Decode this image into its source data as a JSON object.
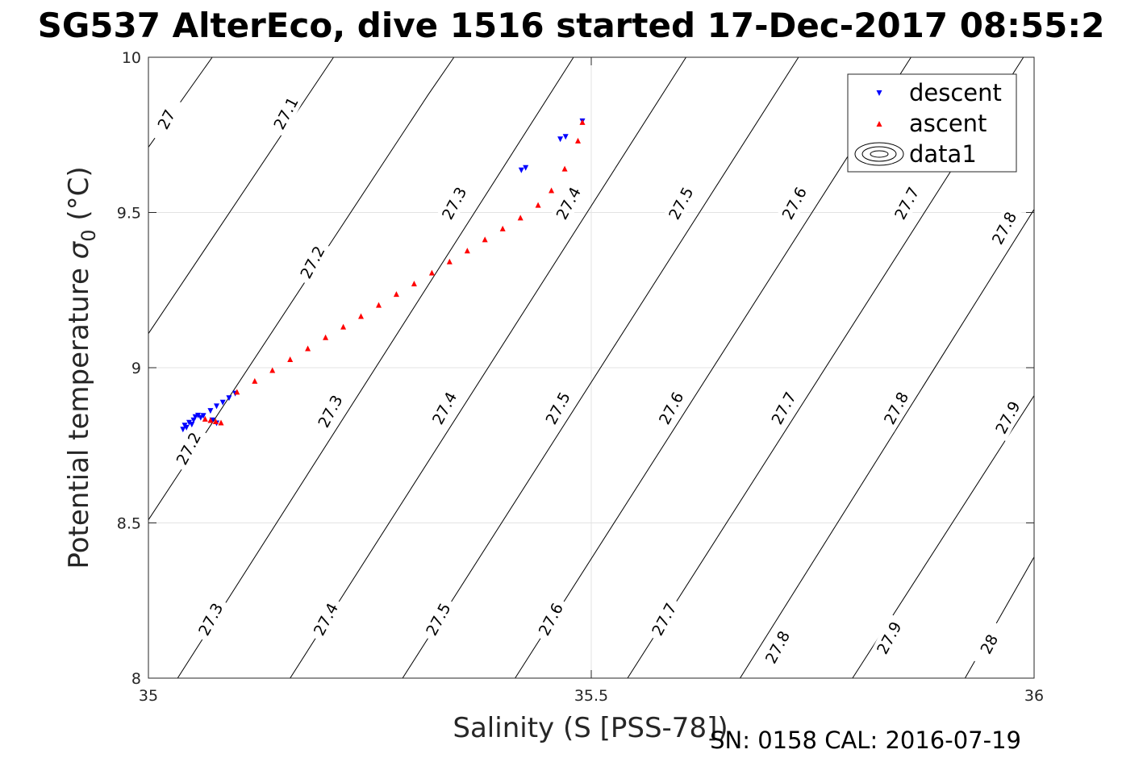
{
  "chart_data": {
    "type": "scatter",
    "title": "SG537 AlterEco, dive 1516 started 17-Dec-2017 08:55:2",
    "xlabel": "Salinity (S [PSS-78])",
    "ylabel_main": "Potential temperature ",
    "ylabel_sym": "σ",
    "ylabel_sub": "0",
    "ylabel_unit": " (°C)",
    "xlim": [
      35,
      36
    ],
    "ylim": [
      8,
      10
    ],
    "xticks": [
      "35",
      "35.5",
      "36"
    ],
    "yticks": [
      "8",
      "8.5",
      "9",
      "9.5",
      "10"
    ],
    "grid": true,
    "legend_position": "top-right",
    "legend": [
      {
        "name": "descent",
        "color": "#0000ff",
        "marker": "triangle-down"
      },
      {
        "name": "ascent",
        "color": "#ff0000",
        "marker": "triangle-up"
      },
      {
        "name": "data1",
        "color": "#000000",
        "marker": "contour"
      }
    ],
    "series": [
      {
        "name": "descent",
        "color": "#0000ff",
        "marker": "triangle-down",
        "points": [
          [
            35.039,
            8.802
          ],
          [
            35.041,
            8.815
          ],
          [
            35.043,
            8.808
          ],
          [
            35.046,
            8.824
          ],
          [
            35.049,
            8.818
          ],
          [
            35.051,
            8.832
          ],
          [
            35.053,
            8.842
          ],
          [
            35.056,
            8.847
          ],
          [
            35.059,
            8.84
          ],
          [
            35.062,
            8.846
          ],
          [
            35.07,
            8.862
          ],
          [
            35.077,
            8.877
          ],
          [
            35.084,
            8.889
          ],
          [
            35.091,
            8.903
          ],
          [
            35.098,
            8.918
          ],
          [
            35.072,
            8.832
          ],
          [
            35.077,
            8.822
          ],
          [
            35.421,
            9.637
          ],
          [
            35.426,
            9.645
          ],
          [
            35.465,
            9.737
          ],
          [
            35.471,
            9.745
          ],
          [
            35.49,
            9.795
          ]
        ]
      },
      {
        "name": "ascent",
        "color": "#ff0000",
        "marker": "triangle-up",
        "points": [
          [
            35.064,
            8.834
          ],
          [
            35.07,
            8.83
          ],
          [
            35.076,
            8.826
          ],
          [
            35.082,
            8.822
          ],
          [
            35.1,
            8.921
          ],
          [
            35.12,
            8.956
          ],
          [
            35.14,
            8.991
          ],
          [
            35.16,
            9.026
          ],
          [
            35.18,
            9.061
          ],
          [
            35.2,
            9.097
          ],
          [
            35.22,
            9.131
          ],
          [
            35.24,
            9.165
          ],
          [
            35.26,
            9.201
          ],
          [
            35.28,
            9.236
          ],
          [
            35.3,
            9.27
          ],
          [
            35.32,
            9.305
          ],
          [
            35.34,
            9.341
          ],
          [
            35.36,
            9.376
          ],
          [
            35.38,
            9.412
          ],
          [
            35.4,
            9.447
          ],
          [
            35.42,
            9.482
          ],
          [
            35.44,
            9.523
          ],
          [
            35.455,
            9.57
          ],
          [
            35.47,
            9.64
          ],
          [
            35.485,
            9.73
          ],
          [
            35.49,
            9.79
          ]
        ]
      }
    ],
    "contours": [
      {
        "level": "27",
        "segments": [
          [
            [
              35.0,
              9.71
            ],
            [
              35.072,
              10.0
            ]
          ]
        ]
      },
      {
        "level": "27.1",
        "segments": [
          [
            [
              35.0,
              9.11
            ],
            [
              35.209,
              10.0
            ]
          ]
        ]
      },
      {
        "level": "27.2",
        "segments": [
          [
            [
              35.0,
              8.51
            ],
            [
              35.316,
              9.88
            ],
            [
              35.345,
              10.0
            ]
          ]
        ]
      },
      {
        "level": "27.3",
        "segments": [
          [
            [
              35.033,
              8.0
            ],
            [
              35.48,
              10.0
            ]
          ]
        ]
      },
      {
        "level": "27.4",
        "segments": [
          [
            [
              35.16,
              8.0
            ],
            [
              35.607,
              10.0
            ]
          ]
        ]
      },
      {
        "level": "27.5",
        "segments": [
          [
            [
              35.287,
              8.0
            ],
            [
              35.734,
              10.0
            ]
          ]
        ]
      },
      {
        "level": "27.6",
        "segments": [
          [
            [
              35.414,
              8.0
            ],
            [
              35.861,
              10.0
            ]
          ]
        ]
      },
      {
        "level": "27.7",
        "segments": [
          [
            [
              35.541,
              8.0
            ],
            [
              35.988,
              10.0
            ]
          ]
        ]
      },
      {
        "level": "27.8",
        "segments": [
          [
            [
              35.668,
              8.0
            ],
            [
              36.0,
              9.51
            ]
          ]
        ]
      },
      {
        "level": "27.9",
        "segments": [
          [
            [
              35.795,
              8.0
            ],
            [
              36.0,
              8.91
            ]
          ]
        ]
      },
      {
        "level": "28",
        "segments": [
          [
            [
              35.922,
              8.0
            ],
            [
              36.0,
              8.39
            ]
          ]
        ]
      }
    ],
    "contour_labels": [
      {
        "text": "27",
        "x": 35.02,
        "y": 9.8
      },
      {
        "text": "27.1",
        "x": 35.155,
        "y": 9.82
      },
      {
        "text": "27.2",
        "x": 35.185,
        "y": 9.34
      },
      {
        "text": "27.2",
        "x": 35.045,
        "y": 8.74
      },
      {
        "text": "27.3",
        "x": 35.345,
        "y": 9.53
      },
      {
        "text": "27.3",
        "x": 35.205,
        "y": 8.86
      },
      {
        "text": "27.3",
        "x": 35.07,
        "y": 8.19
      },
      {
        "text": "27.4",
        "x": 35.474,
        "y": 9.53
      },
      {
        "text": "27.4",
        "x": 35.334,
        "y": 8.87
      },
      {
        "text": "27.4",
        "x": 35.2,
        "y": 8.19
      },
      {
        "text": "27.5",
        "x": 35.601,
        "y": 9.53
      },
      {
        "text": "27.5",
        "x": 35.462,
        "y": 8.87
      },
      {
        "text": "27.5",
        "x": 35.327,
        "y": 8.19
      },
      {
        "text": "27.6",
        "x": 35.729,
        "y": 9.53
      },
      {
        "text": "27.6",
        "x": 35.59,
        "y": 8.87
      },
      {
        "text": "27.6",
        "x": 35.454,
        "y": 8.19
      },
      {
        "text": "27.7",
        "x": 35.856,
        "y": 9.53
      },
      {
        "text": "27.7",
        "x": 35.717,
        "y": 8.87
      },
      {
        "text": "27.7",
        "x": 35.582,
        "y": 8.19
      },
      {
        "text": "27.8",
        "x": 35.966,
        "y": 9.45
      },
      {
        "text": "27.8",
        "x": 35.844,
        "y": 8.87
      },
      {
        "text": "27.8",
        "x": 35.71,
        "y": 8.1
      },
      {
        "text": "27.9",
        "x": 35.97,
        "y": 8.84
      },
      {
        "text": "27.9",
        "x": 35.836,
        "y": 8.13
      },
      {
        "text": "28",
        "x": 35.949,
        "y": 8.11
      }
    ]
  },
  "footer": "SN: 0158  CAL: 2016-07-19"
}
